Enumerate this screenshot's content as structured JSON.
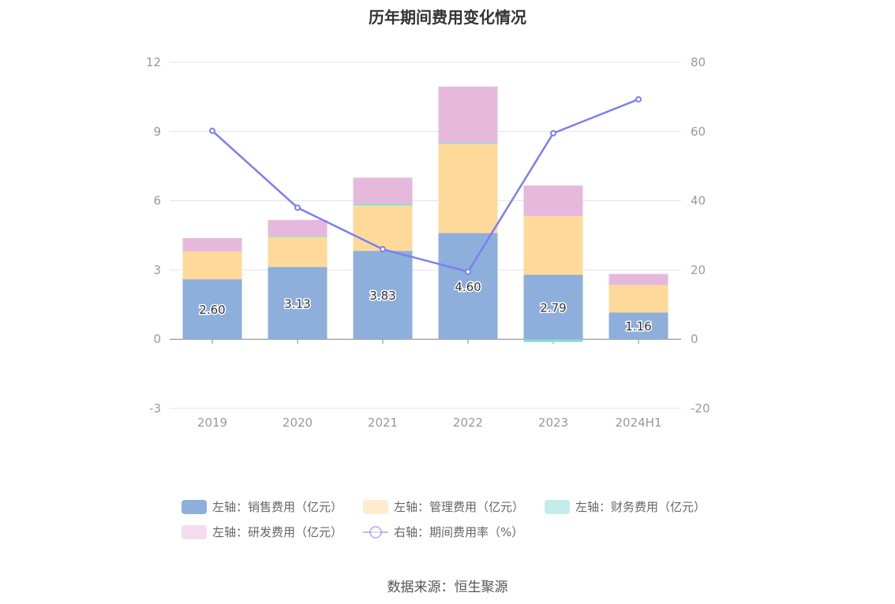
{
  "chart_data": {
    "type": "bar",
    "title": "历年期间费用变化情况",
    "categories": [
      "2019",
      "2020",
      "2021",
      "2022",
      "2023",
      "2024H1"
    ],
    "stacked": true,
    "series": [
      {
        "name": "左轴：销售费用（亿元）",
        "axis": "left",
        "color": "#8eaedb",
        "values": [
          2.6,
          3.13,
          3.83,
          4.6,
          2.79,
          1.16
        ],
        "labels": [
          "2.60",
          "3.13",
          "3.83",
          "4.60",
          "2.79",
          "1.16"
        ]
      },
      {
        "name": "左轴：管理费用（亿元）",
        "axis": "left",
        "color": "#ffd99a",
        "values": [
          1.2,
          1.33,
          1.97,
          3.89,
          2.55,
          1.19
        ]
      },
      {
        "name": "左轴：财务费用（亿元）",
        "axis": "left",
        "color": "#88dad8",
        "values": [
          0.0,
          0.02,
          0.08,
          0.03,
          -0.12,
          0.0
        ]
      },
      {
        "name": "左轴：研发费用（亿元）",
        "axis": "left",
        "color": "#e6b9dc",
        "values": [
          0.58,
          0.69,
          1.12,
          2.43,
          1.32,
          0.48
        ]
      },
      {
        "name": "右轴：期间费用率（%）",
        "axis": "right",
        "type": "line",
        "color": "#7b7ff0",
        "values": [
          60.2,
          38.0,
          26.0,
          19.5,
          59.5,
          69.3
        ]
      }
    ],
    "left_axis": {
      "min": -3,
      "max": 12,
      "ticks": [
        "-3",
        "0",
        "3",
        "6",
        "9",
        "12"
      ]
    },
    "right_axis": {
      "min": -20,
      "max": 80,
      "ticks": [
        "-20",
        "0",
        "20",
        "40",
        "60",
        "80"
      ]
    },
    "grid": true,
    "legend_position": "bottom"
  },
  "source_text": "数据来源：恒生聚源"
}
